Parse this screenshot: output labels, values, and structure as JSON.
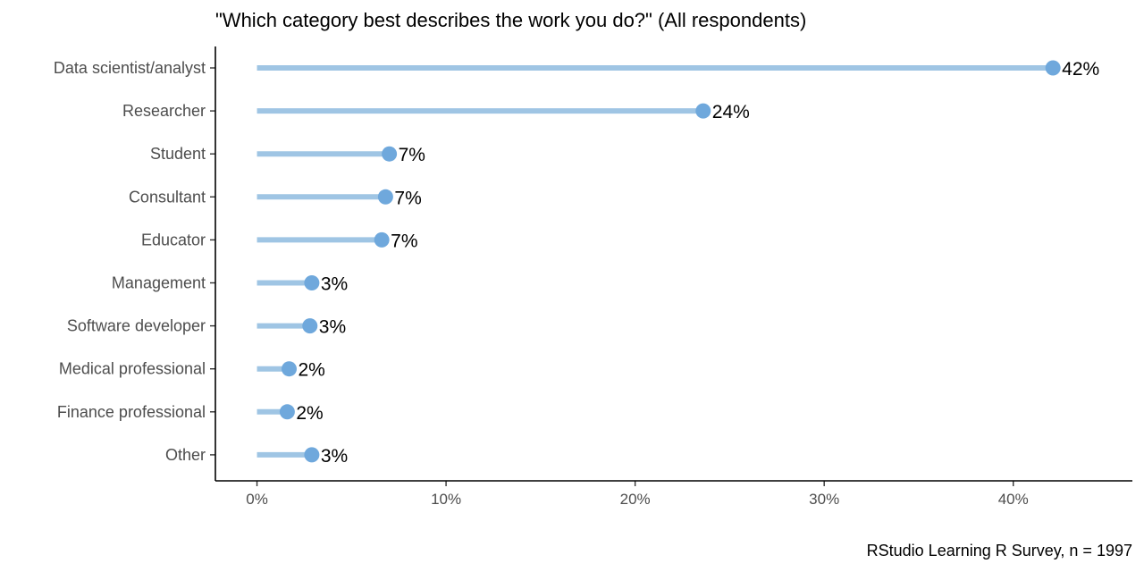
{
  "chart_data": {
    "type": "lollipop",
    "title": "\"Which category best describes the work you do?\" (All respondents)",
    "caption": "RStudio Learning R Survey, n = 1997",
    "categories": [
      "Data scientist/analyst",
      "Researcher",
      "Student",
      "Consultant",
      "Educator",
      "Management",
      "Software developer",
      "Medical professional",
      "Finance professional",
      "Other"
    ],
    "values": [
      42.1,
      23.6,
      7.0,
      6.8,
      6.6,
      2.9,
      2.8,
      1.7,
      1.6,
      2.9
    ],
    "labels": [
      "42%",
      "24%",
      "7%",
      "7%",
      "7%",
      "3%",
      "3%",
      "2%",
      "2%",
      "3%"
    ],
    "xticks": [
      0,
      10,
      20,
      30,
      40
    ],
    "xtick_labels": [
      "0%",
      "10%",
      "20%",
      "30%",
      "40%"
    ],
    "xlim": [
      -2.2,
      46.3
    ],
    "xlabel": "",
    "ylabel": "",
    "grid": false,
    "colors": {
      "stem": "#9fc5e4",
      "dot": "#6fa8dc"
    }
  }
}
